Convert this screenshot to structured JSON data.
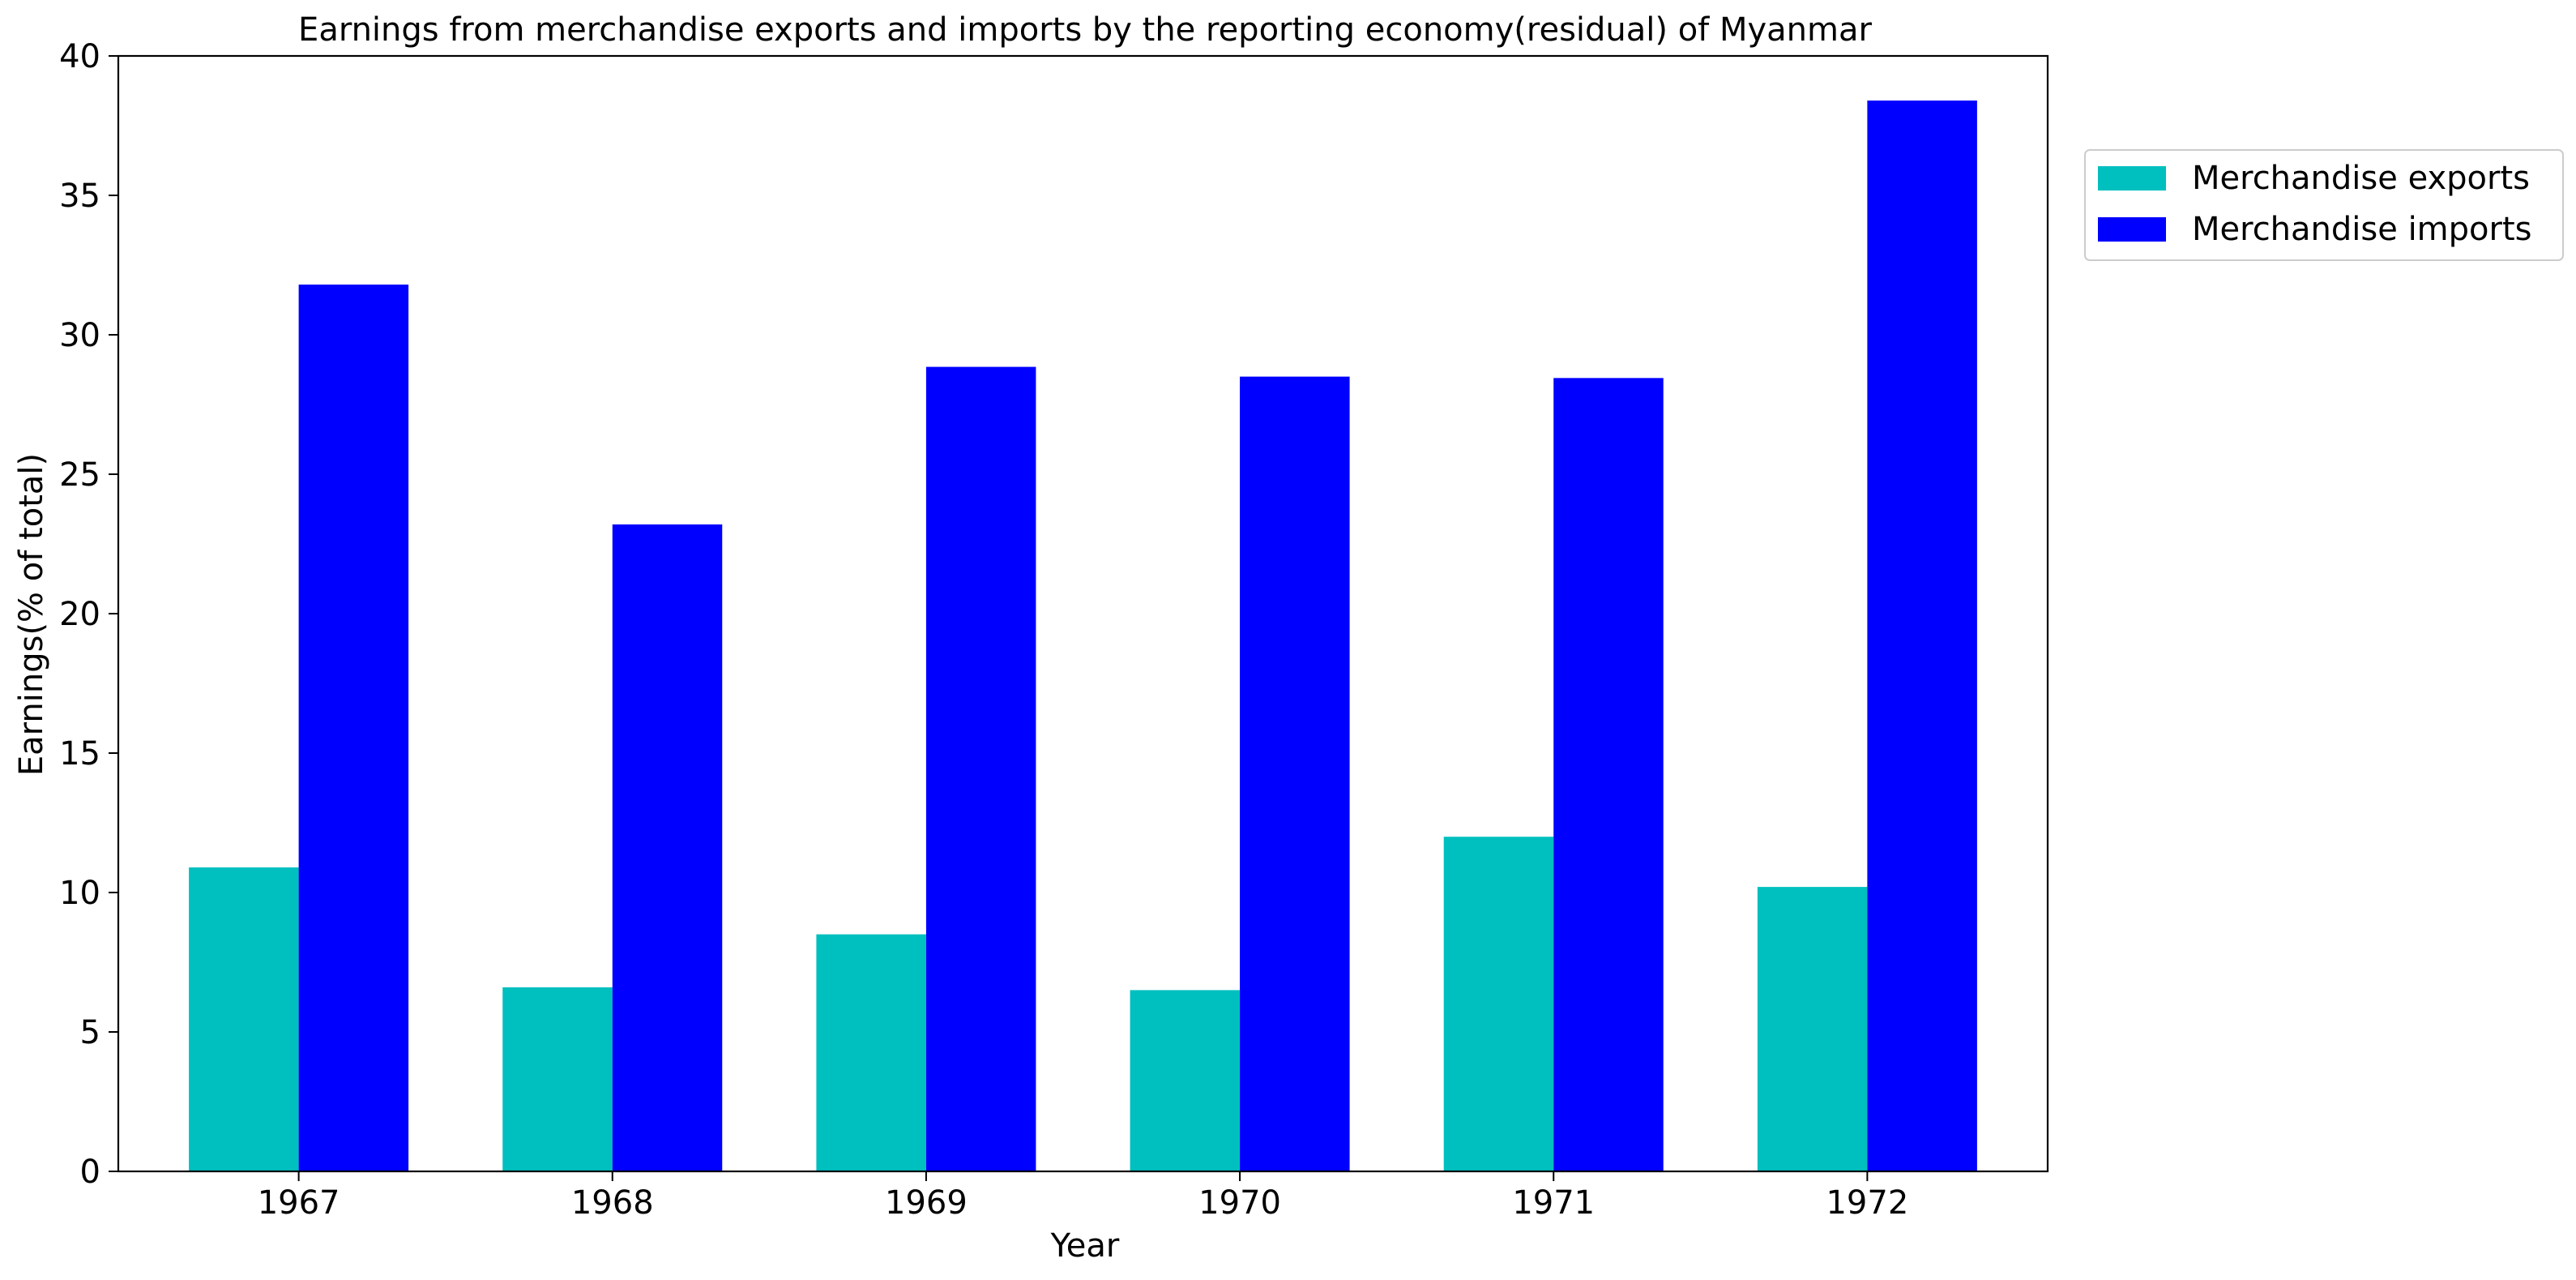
{
  "chart_data": {
    "type": "bar",
    "title": "Earnings from merchandise exports and imports by the reporting economy(residual) of Myanmar",
    "xlabel": "Year",
    "ylabel": "Earnings(% of total)",
    "categories": [
      "1967",
      "1968",
      "1969",
      "1970",
      "1971",
      "1972"
    ],
    "series": [
      {
        "name": "Merchandise exports",
        "color": "#00bfbf",
        "values": [
          10.9,
          6.6,
          8.5,
          6.5,
          12.0,
          10.2
        ]
      },
      {
        "name": "Merchandise imports",
        "color": "#0000ff",
        "values": [
          31.8,
          23.2,
          28.85,
          28.5,
          28.45,
          38.4
        ]
      }
    ],
    "ylim": [
      0,
      40
    ],
    "yticks": [
      0,
      5,
      10,
      15,
      20,
      25,
      30,
      35,
      40
    ],
    "grid": false,
    "legend_position": "outside-top-right"
  }
}
